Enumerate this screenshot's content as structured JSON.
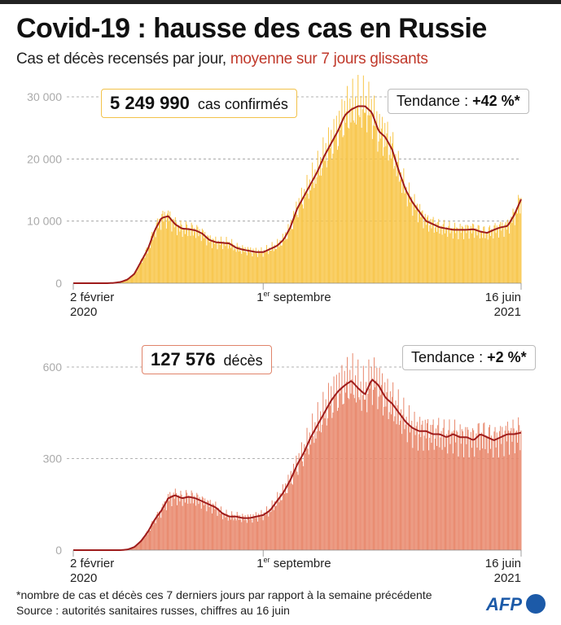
{
  "title": "Covid-19 : hausse des cas en Russie",
  "subtitle_main": "Cas et décès recensés par jour,",
  "subtitle_highlight": "moyenne sur 7 jours glissants",
  "colors": {
    "cases_bar": "#f8c547",
    "deaths_bar": "#e8866a",
    "avg_line": "#9e1b1b",
    "highlight": "#c0392b",
    "afp": "#1c5aa8"
  },
  "chart_data": [
    {
      "type": "bar",
      "title": "cas confirmés",
      "total": "5 249 990",
      "total_label": "cas confirmés",
      "trend": "Tendance : ",
      "trend_value": "+42 %*",
      "ylim": [
        0,
        30000
      ],
      "yticks": [
        {
          "v": 0,
          "l": "0"
        },
        {
          "v": 10000,
          "l": "10 000"
        },
        {
          "v": 20000,
          "l": "20 000"
        },
        {
          "v": 30000,
          "l": "30 000"
        }
      ],
      "x_range_days": [
        0,
        500
      ],
      "xticks": [
        {
          "day": 0,
          "l1": "2 février",
          "l2": "2020"
        },
        {
          "day": 212,
          "l1": "1",
          "sup": "er",
          "l1b": " septembre"
        },
        {
          "day": 500,
          "l1": "16 juin",
          "l2": "2021"
        }
      ],
      "weekly_avg": [
        0,
        0,
        0,
        0,
        0,
        5,
        50,
        200,
        600,
        1500,
        3500,
        5500,
        8500,
        10500,
        10800,
        9500,
        8800,
        8700,
        8500,
        8000,
        7000,
        6600,
        6500,
        6400,
        5700,
        5400,
        5200,
        5000,
        5000,
        5500,
        6000,
        7000,
        9000,
        12000,
        14000,
        16000,
        18000,
        20500,
        22500,
        24500,
        27000,
        28000,
        28500,
        28500,
        27500,
        24500,
        23500,
        21500,
        18000,
        15000,
        13000,
        11500,
        10000,
        9500,
        9000,
        8800,
        8600,
        8600,
        8600,
        8700,
        8300,
        8100,
        8600,
        9000,
        9200,
        11000,
        13500
      ]
    },
    {
      "type": "bar",
      "title": "décès",
      "total": "127 576",
      "total_label": "décès",
      "trend": "Tendance : ",
      "trend_value": "+2 %*",
      "ylim": [
        0,
        600
      ],
      "yticks": [
        {
          "v": 0,
          "l": "0"
        },
        {
          "v": 300,
          "l": "300"
        },
        {
          "v": 600,
          "l": "600"
        }
      ],
      "x_range_days": [
        0,
        500
      ],
      "xticks": [
        {
          "day": 0,
          "l1": "2 février",
          "l2": "2020"
        },
        {
          "day": 212,
          "l1": "1",
          "sup": "er",
          "l1b": " septembre"
        },
        {
          "day": 500,
          "l1": "16 juin",
          "l2": "2021"
        }
      ],
      "weekly_avg": [
        0,
        0,
        0,
        0,
        0,
        0,
        0,
        0,
        2,
        10,
        30,
        60,
        100,
        130,
        170,
        180,
        170,
        175,
        170,
        160,
        150,
        140,
        120,
        110,
        110,
        105,
        105,
        110,
        115,
        130,
        160,
        190,
        230,
        280,
        320,
        370,
        410,
        450,
        490,
        520,
        540,
        555,
        530,
        510,
        560,
        540,
        500,
        480,
        450,
        420,
        400,
        390,
        390,
        380,
        380,
        370,
        380,
        370,
        370,
        360,
        380,
        370,
        360,
        370,
        380,
        380,
        385
      ]
    }
  ],
  "footnote": "*nombre de cas et décès ces 7 derniers jours par rapport à la semaine précédente",
  "source": "Source : autorités sanitaires russes, chiffres au 16 juin",
  "logo": "AFP"
}
